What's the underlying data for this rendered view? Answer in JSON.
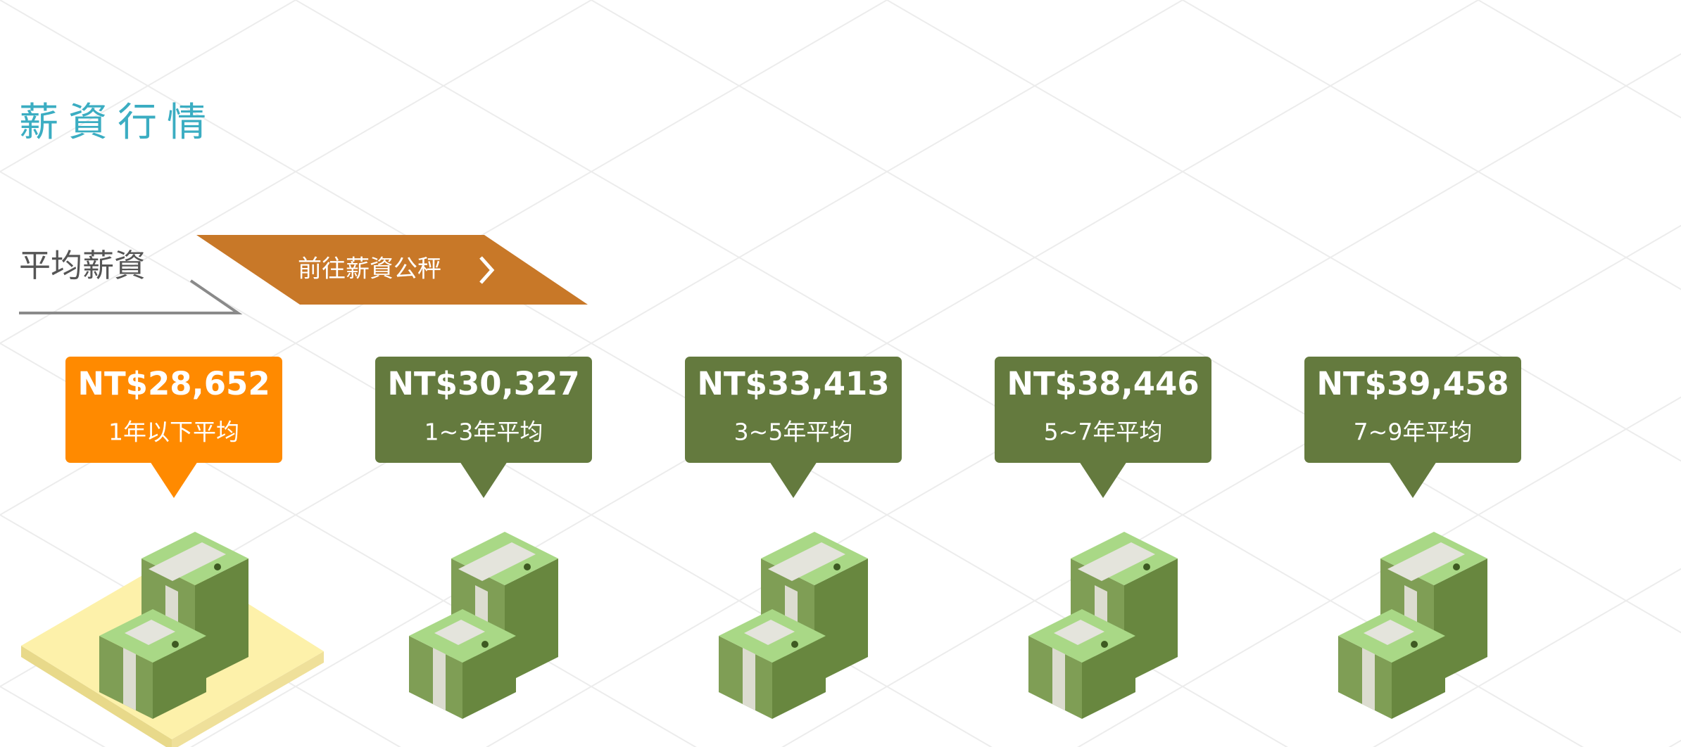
{
  "header": {
    "title": "薪資行情"
  },
  "salary": {
    "label": "平均薪資",
    "button": "前往薪資公秤",
    "items": [
      {
        "amount": "NT$28,652",
        "period": "1年以下平均"
      },
      {
        "amount": "NT$30,327",
        "period": "1~3年平均"
      },
      {
        "amount": "NT$33,413",
        "period": "3~5年平均"
      },
      {
        "amount": "NT$38,446",
        "period": "5~7年平均"
      },
      {
        "amount": "NT$39,458",
        "period": "7~9年平均"
      }
    ]
  }
}
